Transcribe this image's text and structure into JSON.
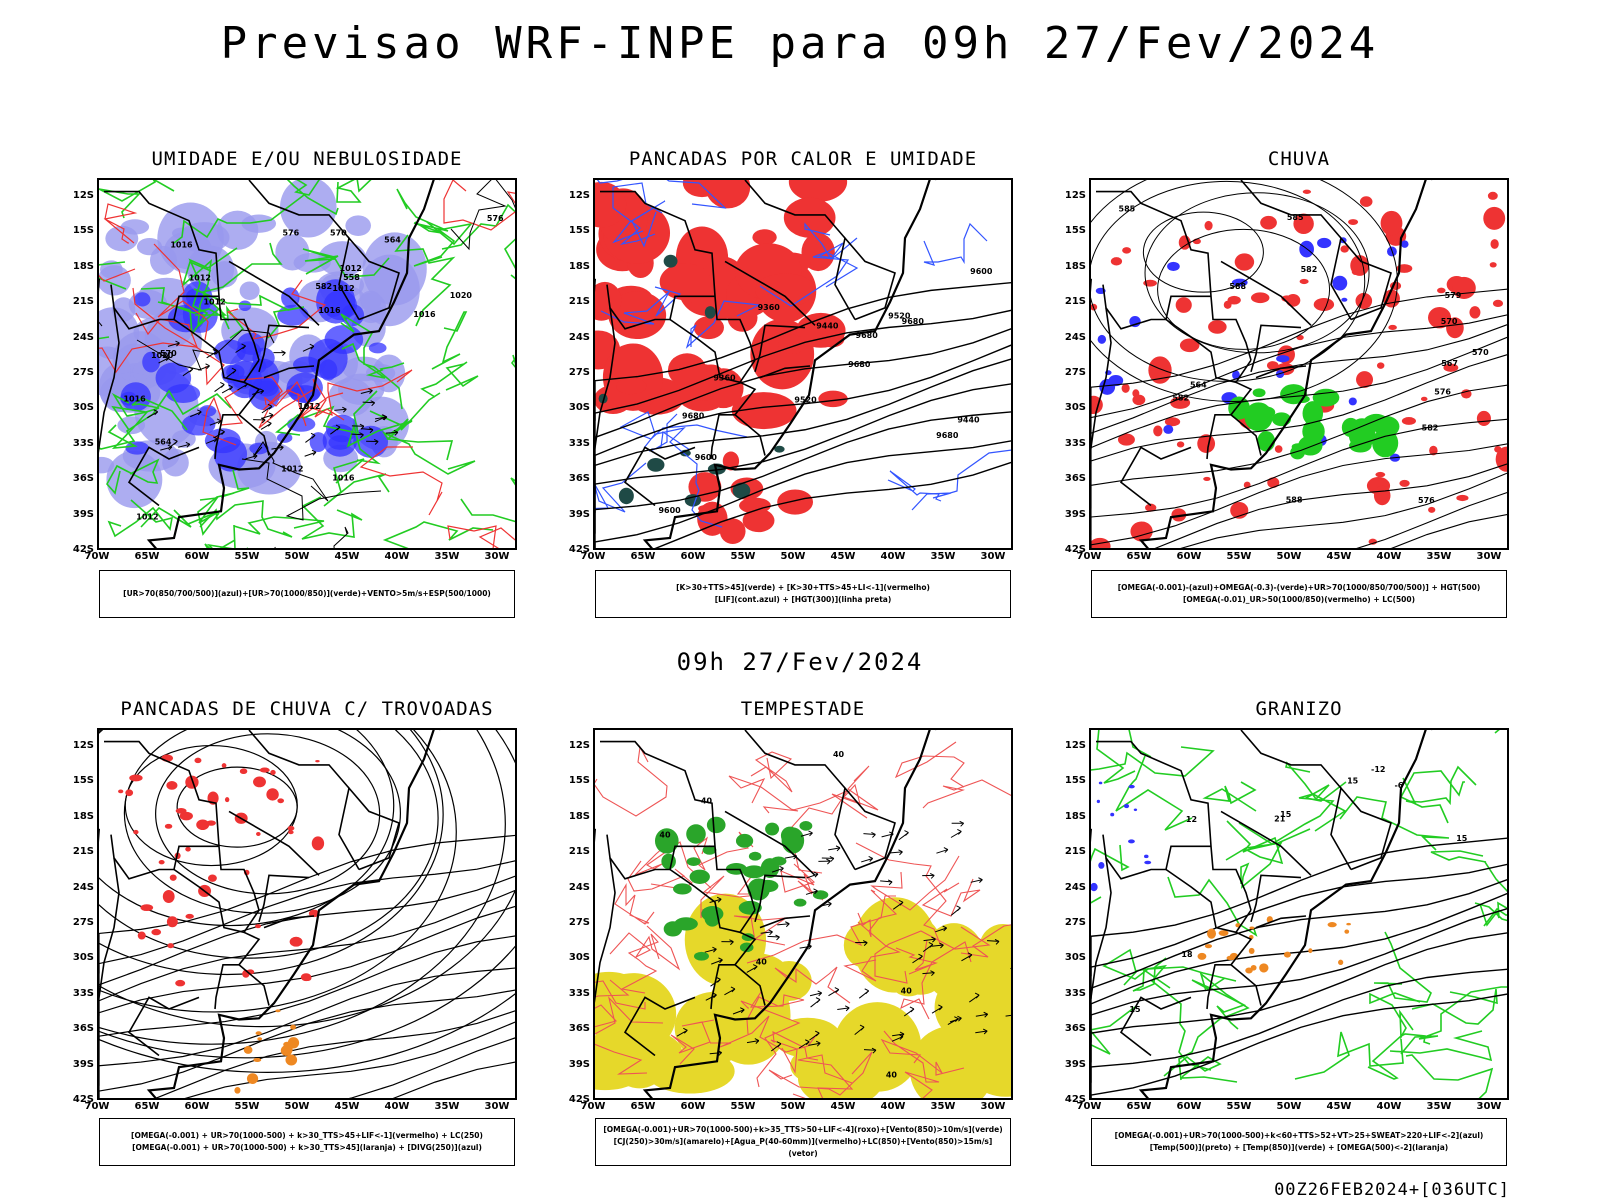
{
  "title": "Previsao WRF-INPE  para 09h 27/Fev/2024",
  "mid_title": "09h 27/Fev/2024",
  "footer": "00Z26FEB2024+[036UTC]",
  "axes": {
    "lat_labels": [
      "12S",
      "15S",
      "18S",
      "21S",
      "24S",
      "27S",
      "30S",
      "33S",
      "36S",
      "39S",
      "42S"
    ],
    "lon_labels": [
      "70W",
      "65W",
      "60W",
      "55W",
      "50W",
      "45W",
      "40W",
      "35W",
      "30W"
    ]
  },
  "colors": {
    "blue": "#3333ff",
    "light_blue": "#9999ee",
    "green": "#22cc22",
    "red": "#ee3333",
    "dark_teal": "#1f4a46",
    "yellow": "#e6d82a",
    "orange": "#ee8822",
    "purple": "#9933cc"
  },
  "chart_data": [
    {
      "type": "heatmap",
      "title": "UMIDADE E/OU NEBULOSIDADE",
      "legend_lines": [
        "[UR>70(850/700/500)](azul)+[UR>70(1000/850)](verde)+VENTO>5m/s+ESP(500/1000)"
      ],
      "xlim": [
        -70,
        -28
      ],
      "ylim": [
        -42,
        -10
      ],
      "contour_labels": [
        "1012",
        "1012",
        "1016",
        "1016",
        "1016",
        "1020",
        "1012",
        "1012",
        "1016",
        "1012",
        "1020",
        "1016",
        "1012",
        "1012",
        "570",
        "576",
        "576",
        "570",
        "564",
        "558",
        "582",
        "564"
      ]
    },
    {
      "type": "heatmap",
      "title": "PANCADAS POR CALOR E UMIDADE",
      "legend_lines": [
        "[K>30+TTS>45](verde) + [K>30+TTS>45+LI<-1](vermelho)",
        "[LIF](cont.azul) + [HGT(300)](linha preta)"
      ],
      "xlim": [
        -70,
        -28
      ],
      "ylim": [
        -42,
        -10
      ],
      "contour_labels": [
        "9680",
        "9600",
        "9680",
        "9680",
        "9600",
        "9520",
        "9440",
        "9360",
        "9680",
        "9600",
        "9520",
        "9440",
        "9360",
        "9680"
      ]
    },
    {
      "type": "heatmap",
      "title": "CHUVA",
      "legend_lines": [
        "[OMEGA(-0.001)-(azul)+OMEGA(-0.3)-(verde)+UR>70(1000/850/700/500)] + HGT(500)",
        "[OMEGA(-0.01)_UR>50(1000/850)(vermelho) + LC(500)"
      ],
      "xlim": [
        -70,
        -28
      ],
      "ylim": [
        -42,
        -10
      ],
      "contour_labels": [
        "585",
        "585",
        "588",
        "588",
        "582",
        "582",
        "582",
        "576",
        "570",
        "570",
        "567",
        "564",
        "576",
        "579"
      ]
    },
    {
      "type": "heatmap",
      "title": "PANCADAS DE CHUVA C/ TROVOADAS",
      "legend_lines": [
        "[OMEGA(-0.001) + UR>70(1000-500) + k>30_TTS>45+LIF<-1](vermelho) + LC(250)",
        "[OMEGA(-0.001) + UR>70(1000-500) + k>30_TTS>45](laranja) + [DIVG(250)](azul)"
      ],
      "xlim": [
        -70,
        -28
      ],
      "ylim": [
        -42,
        -10
      ],
      "contour_labels": []
    },
    {
      "type": "heatmap",
      "title": "TEMPESTADE",
      "legend_lines": [
        "[OMEGA(-0.001)+UR>70(1000-500)+k>35_TTS>50+LIF<-4](roxo)+[Vento(850)>10m/s](verde)",
        "[CJ(250)>30m/s](amarelo)+[Agua_P(40-60mm)](vermelho)+LC(850)+[Vento(850)>15m/s](vetor)"
      ],
      "xlim": [
        -70,
        -28
      ],
      "ylim": [
        -42,
        -10
      ],
      "contour_labels": [
        "40",
        "40",
        "40",
        "40",
        "40",
        "40"
      ]
    },
    {
      "type": "heatmap",
      "title": "GRANIZO",
      "legend_lines": [
        "[OMEGA(-0.001)+UR>70(1000-500)+k<60+TTS>52+VT>25+SWEAT>220+LIF<-2](azul)",
        "[Temp(500)](preto) + [Temp(850)](verde) + [OMEGA(500)<-2](laranja)"
      ],
      "xlim": [
        -70,
        -28
      ],
      "ylim": [
        -42,
        -10
      ],
      "contour_labels": [
        "15",
        "12",
        "15",
        "15",
        "15",
        "18",
        "21",
        "-12",
        "-6"
      ]
    }
  ]
}
